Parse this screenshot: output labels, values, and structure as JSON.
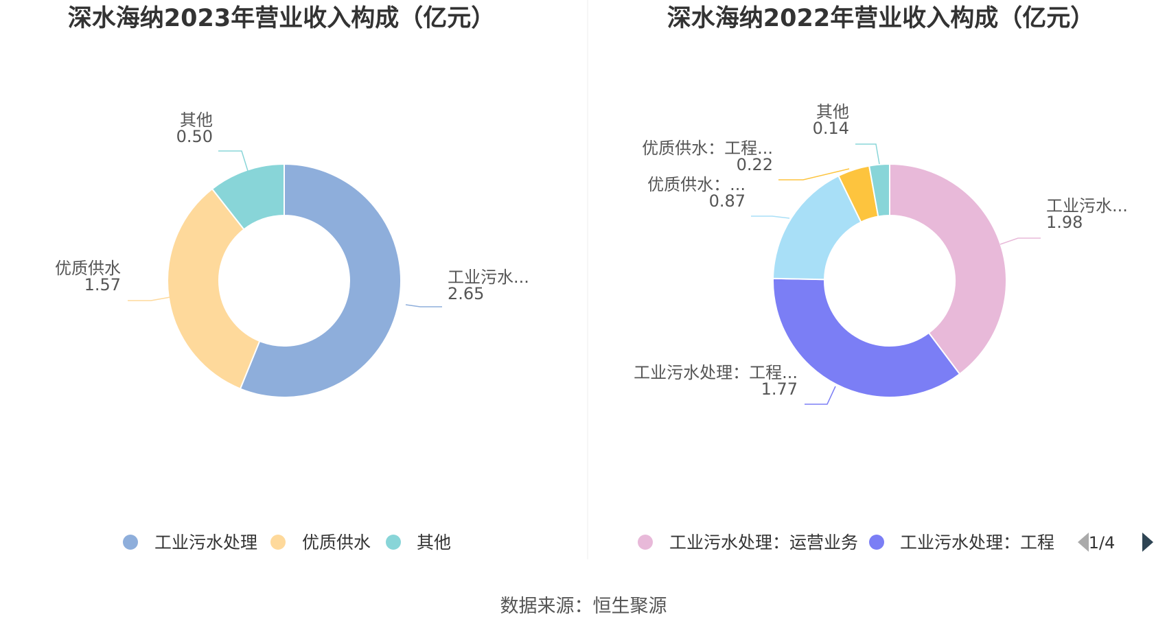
{
  "chart_data": [
    {
      "type": "pie",
      "title": "深水海纳2023年营业收入构成（亿元）",
      "slices": [
        {
          "name": "工业污水处理",
          "short_label": "工业污水...",
          "value": 2.65,
          "value_label": "2.65",
          "color": "#8eaedb"
        },
        {
          "name": "优质供水",
          "short_label": "优质供水",
          "value": 1.57,
          "value_label": "1.57",
          "color": "#fed99b"
        },
        {
          "name": "其他",
          "short_label": "其他",
          "value": 0.5,
          "value_label": "0.50",
          "color": "#88d5d8"
        }
      ],
      "legend": [
        {
          "label": "工业污水处理",
          "color": "#8eaedb"
        },
        {
          "label": "优质供水",
          "color": "#fed99b"
        },
        {
          "label": "其他",
          "color": "#88d5d8"
        }
      ]
    },
    {
      "type": "pie",
      "title": "深水海纳2022年营业收入构成（亿元）",
      "slices": [
        {
          "name": "工业污水处理：运营业务",
          "short_label": "工业污水...",
          "value": 1.98,
          "value_label": "1.98",
          "color": "#e8b9d9"
        },
        {
          "name": "工业污水处理：工程",
          "short_label": "工业污水处理：工程...",
          "value": 1.77,
          "value_label": "1.77",
          "color": "#7b7ef5"
        },
        {
          "name": "优质供水：...",
          "short_label": "优质供水：...",
          "value": 0.87,
          "value_label": "0.87",
          "color": "#a8dff7"
        },
        {
          "name": "优质供水：工程...",
          "short_label": "优质供水：工程...",
          "value": 0.22,
          "value_label": "0.22",
          "color": "#fdc43e"
        },
        {
          "name": "其他",
          "short_label": "其他",
          "value": 0.14,
          "value_label": "0.14",
          "color": "#88d5d8"
        }
      ],
      "legend": [
        {
          "label": "工业污水处理：运营业务",
          "color": "#e8b9d9"
        },
        {
          "label": "工业污水处理：工程",
          "color": "#7b7ef5"
        }
      ],
      "pager": "1/4"
    }
  ],
  "source": "数据来源：恒生聚源"
}
